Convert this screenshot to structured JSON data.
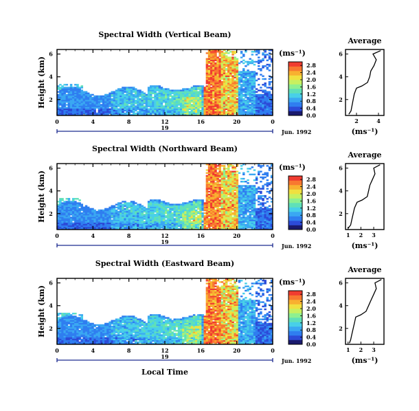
{
  "chart_data": [
    {
      "type": "heatmap",
      "title": "Spectral Width (Vertical Beam)",
      "ylabel": "Height (km)",
      "xlim": [
        0,
        24
      ],
      "ylim": [
        0.6,
        6.4
      ],
      "xticks": [
        "0",
        "4",
        "8",
        "12",
        "16",
        "20",
        "0"
      ],
      "yticks": [
        "2",
        "4",
        "6"
      ],
      "date_axis": {
        "day": "19",
        "label": "Jun. 1992"
      },
      "colorbar": {
        "unit": "(ms⁻¹)",
        "ticks": [
          "0.0",
          "0.4",
          "0.8",
          "1.2",
          "1.6",
          "2.0",
          "2.4",
          "2.8"
        ],
        "range": [
          0,
          3.0
        ]
      },
      "average": {
        "title": "Average",
        "xlabel": "(ms⁻¹)",
        "xticks": [
          "2",
          "4"
        ],
        "xlim": [
          1,
          4.5
        ],
        "heights": [
          0.7,
          1.0,
          1.5,
          2.0,
          2.5,
          3.0,
          3.2,
          3.5,
          4.0,
          4.5,
          5.0,
          5.5,
          6.0,
          6.3
        ],
        "values": [
          1.3,
          1.5,
          1.6,
          1.7,
          1.8,
          2.0,
          2.5,
          3.0,
          3.2,
          3.3,
          3.6,
          3.8,
          3.5,
          4.2
        ]
      }
    },
    {
      "type": "heatmap",
      "title": "Spectral Width (Northward Beam)",
      "ylabel": "Height (km)",
      "xlim": [
        0,
        24
      ],
      "ylim": [
        0.6,
        6.4
      ],
      "xticks": [
        "0",
        "4",
        "8",
        "12",
        "16",
        "20",
        "0"
      ],
      "yticks": [
        "2",
        "4",
        "6"
      ],
      "date_axis": {
        "day": "19",
        "label": "Jun. 1992"
      },
      "colorbar": {
        "unit": "(ms⁻¹)",
        "ticks": [
          "0.0",
          "0.4",
          "0.8",
          "1.2",
          "1.6",
          "2.0",
          "2.4",
          "2.8"
        ],
        "range": [
          0,
          3.0
        ]
      },
      "average": {
        "title": "Average",
        "xlabel": "(ms⁻¹)",
        "xticks": [
          "1",
          "2",
          "3"
        ],
        "xlim": [
          0.8,
          3.8
        ],
        "heights": [
          0.7,
          1.0,
          1.5,
          2.0,
          2.5,
          3.0,
          3.2,
          3.5,
          4.0,
          4.5,
          5.0,
          5.5,
          6.0,
          6.3
        ],
        "values": [
          1.0,
          1.2,
          1.3,
          1.4,
          1.5,
          1.7,
          2.1,
          2.5,
          2.6,
          2.7,
          2.9,
          3.1,
          3.0,
          3.5
        ]
      }
    },
    {
      "type": "heatmap",
      "title": "Spectral Width (Eastward Beam)",
      "ylabel": "Height (km)",
      "xlabel": "Local Time",
      "xlim": [
        0,
        24
      ],
      "ylim": [
        0.6,
        6.4
      ],
      "xticks": [
        "0",
        "4",
        "8",
        "12",
        "16",
        "20",
        "0"
      ],
      "yticks": [
        "2",
        "4",
        "6"
      ],
      "date_axis": {
        "day": "19",
        "label": "Jun. 1992"
      },
      "colorbar": {
        "unit": "(ms⁻¹)",
        "ticks": [
          "0.0",
          "0.4",
          "0.8",
          "1.2",
          "1.6",
          "2.0",
          "2.4",
          "2.8"
        ],
        "range": [
          0,
          3.0
        ]
      },
      "average": {
        "title": "Average",
        "xlabel": "(ms⁻¹)",
        "xticks": [
          "1",
          "2",
          "3"
        ],
        "xlim": [
          0.8,
          3.8
        ],
        "heights": [
          0.7,
          1.0,
          1.5,
          2.0,
          2.5,
          3.0,
          3.2,
          3.5,
          4.0,
          4.5,
          5.0,
          5.5,
          6.0,
          6.3
        ],
        "values": [
          1.1,
          1.2,
          1.3,
          1.4,
          1.5,
          1.6,
          2.0,
          2.4,
          2.6,
          2.8,
          3.0,
          3.2,
          3.1,
          3.6
        ]
      }
    }
  ],
  "colors": {
    "scale": [
      "#1a1a6e",
      "#2c4bd8",
      "#2f7ef0",
      "#3aa8f2",
      "#48d0e8",
      "#60e0b8",
      "#8ef090",
      "#c8f060",
      "#f0e040",
      "#f8b030",
      "#f87830",
      "#f03c30"
    ]
  }
}
